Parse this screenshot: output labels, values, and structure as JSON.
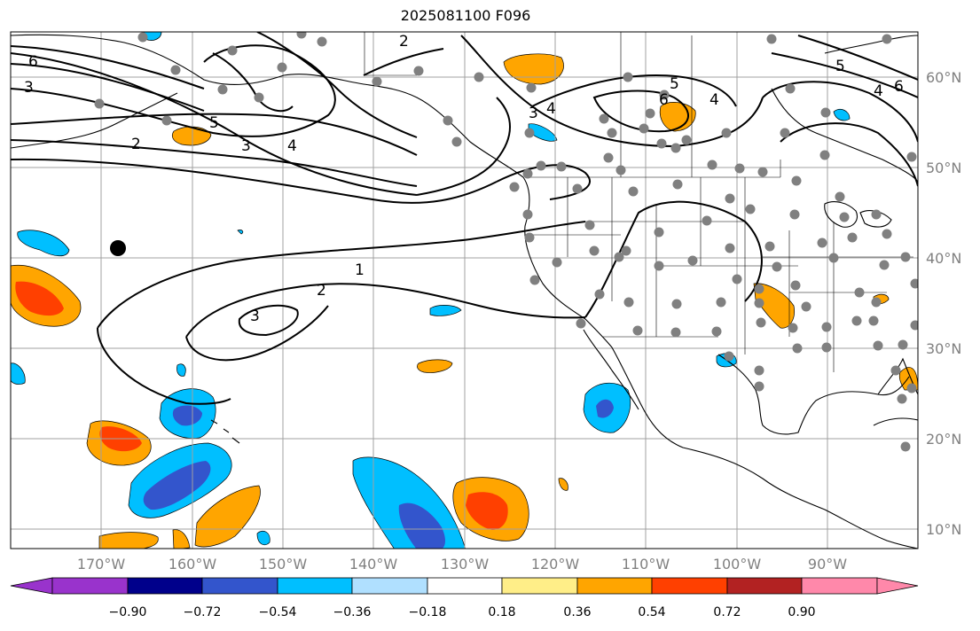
{
  "title": "2025081100 F096",
  "map": {
    "projection": "plate-carree",
    "extent_lon": [
      -180,
      -80
    ],
    "extent_lat": [
      7,
      64
    ],
    "gridlines": true,
    "lat_labels": [
      "60°N",
      "50°N",
      "40°N",
      "30°N",
      "20°N",
      "10°N"
    ],
    "lon_labels": [
      "170°W",
      "160°W",
      "150°W",
      "140°W",
      "130°W",
      "120°W",
      "110°W",
      "100°W",
      "90°W"
    ],
    "contour_labels": [
      "6",
      "3",
      "2",
      "5",
      "3",
      "4",
      "2",
      "3",
      "4",
      "5",
      "6",
      "4",
      "6",
      "5",
      "4",
      "1",
      "2",
      "3"
    ],
    "station_color": "#808080",
    "highlight_marker_color": "#000000"
  },
  "colorbar": {
    "colors": [
      "#9933cc",
      "#00008b",
      "#3355cc",
      "#00bfff",
      "#b0e0ff",
      "#ffffff",
      "#ffee88",
      "#ffa500",
      "#ff4000",
      "#b22222",
      "#ff88aa"
    ],
    "tick_labels": [
      "−0.90",
      "−0.72",
      "−0.54",
      "−0.36",
      "−0.18",
      "0.18",
      "0.36",
      "0.54",
      "0.72",
      "0.90"
    ],
    "extend": "both"
  }
}
